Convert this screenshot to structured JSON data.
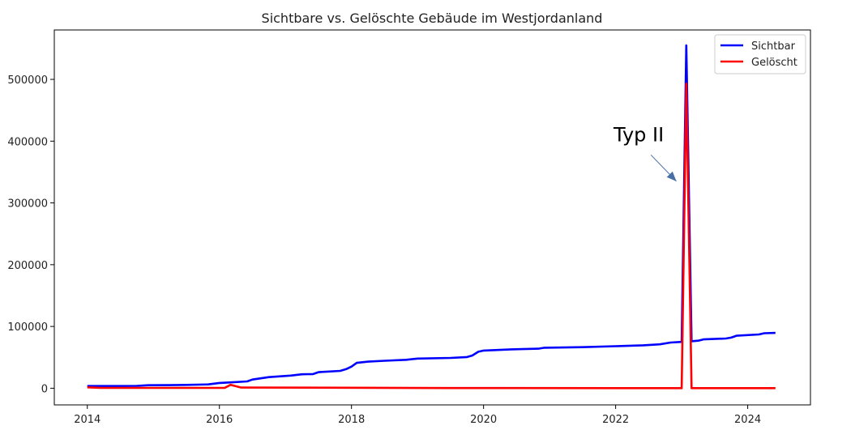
{
  "chart_data": {
    "type": "line",
    "title": "Sichtbare vs. Gelöschte Gebäude im Westjordanland",
    "xlabel": "",
    "ylabel": "",
    "xlim": [
      2013.5,
      2024.95
    ],
    "ylim": [
      -27000,
      580000
    ],
    "xticks": [
      2014,
      2016,
      2018,
      2020,
      2022,
      2024
    ],
    "xtick_labels": [
      "2014",
      "2016",
      "2018",
      "2020",
      "2022",
      "2024"
    ],
    "yticks": [
      0,
      100000,
      200000,
      300000,
      400000,
      500000
    ],
    "ytick_labels": [
      "0",
      "100000",
      "200000",
      "300000",
      "400000",
      "500000"
    ],
    "grid": false,
    "legend_position": "top-right",
    "series": [
      {
        "name": "Sichtbar",
        "color": "#0000ff",
        "points": [
          [
            2014.0,
            3500
          ],
          [
            2014.5,
            3600
          ],
          [
            2014.75,
            3800
          ],
          [
            2014.92,
            4800
          ],
          [
            2015.25,
            5000
          ],
          [
            2015.5,
            5400
          ],
          [
            2015.83,
            6200
          ],
          [
            2016.0,
            8500
          ],
          [
            2016.17,
            9500
          ],
          [
            2016.42,
            11000
          ],
          [
            2016.5,
            14000
          ],
          [
            2016.75,
            18000
          ],
          [
            2017.08,
            20500
          ],
          [
            2017.25,
            22500
          ],
          [
            2017.42,
            23000
          ],
          [
            2017.5,
            26000
          ],
          [
            2017.83,
            28000
          ],
          [
            2017.92,
            31000
          ],
          [
            2018.0,
            35000
          ],
          [
            2018.08,
            41000
          ],
          [
            2018.25,
            43000
          ],
          [
            2018.5,
            44500
          ],
          [
            2018.83,
            46000
          ],
          [
            2019.0,
            48000
          ],
          [
            2019.5,
            49000
          ],
          [
            2019.75,
            50500
          ],
          [
            2019.83,
            53000
          ],
          [
            2019.92,
            59000
          ],
          [
            2020.0,
            61000
          ],
          [
            2020.42,
            63000
          ],
          [
            2020.83,
            64000
          ],
          [
            2020.92,
            65500
          ],
          [
            2021.5,
            66500
          ],
          [
            2022.0,
            68000
          ],
          [
            2022.42,
            69500
          ],
          [
            2022.67,
            71000
          ],
          [
            2022.83,
            74000
          ],
          [
            2023.0,
            75000
          ],
          [
            2023.07,
            555000
          ],
          [
            2023.15,
            76000
          ],
          [
            2023.25,
            77000
          ],
          [
            2023.33,
            79000
          ],
          [
            2023.67,
            80500
          ],
          [
            2023.75,
            82000
          ],
          [
            2023.83,
            85000
          ],
          [
            2024.17,
            87000
          ],
          [
            2024.25,
            89000
          ],
          [
            2024.42,
            89500
          ]
        ]
      },
      {
        "name": "Gelöscht",
        "color": "#ff0000",
        "points": [
          [
            2014.0,
            1500
          ],
          [
            2014.2,
            500
          ],
          [
            2016.08,
            500
          ],
          [
            2016.17,
            5500
          ],
          [
            2016.33,
            1000
          ],
          [
            2017.92,
            800
          ],
          [
            2019.5,
            300
          ],
          [
            2023.0,
            200
          ],
          [
            2023.07,
            493000
          ],
          [
            2023.15,
            200
          ],
          [
            2024.42,
            200
          ]
        ]
      }
    ],
    "annotations": [
      {
        "text": "Typ II",
        "xy": [
          2022.92,
          335000
        ],
        "xytext": [
          2022.35,
          400000
        ],
        "arrow_color": "#4a6fa5"
      }
    ]
  }
}
